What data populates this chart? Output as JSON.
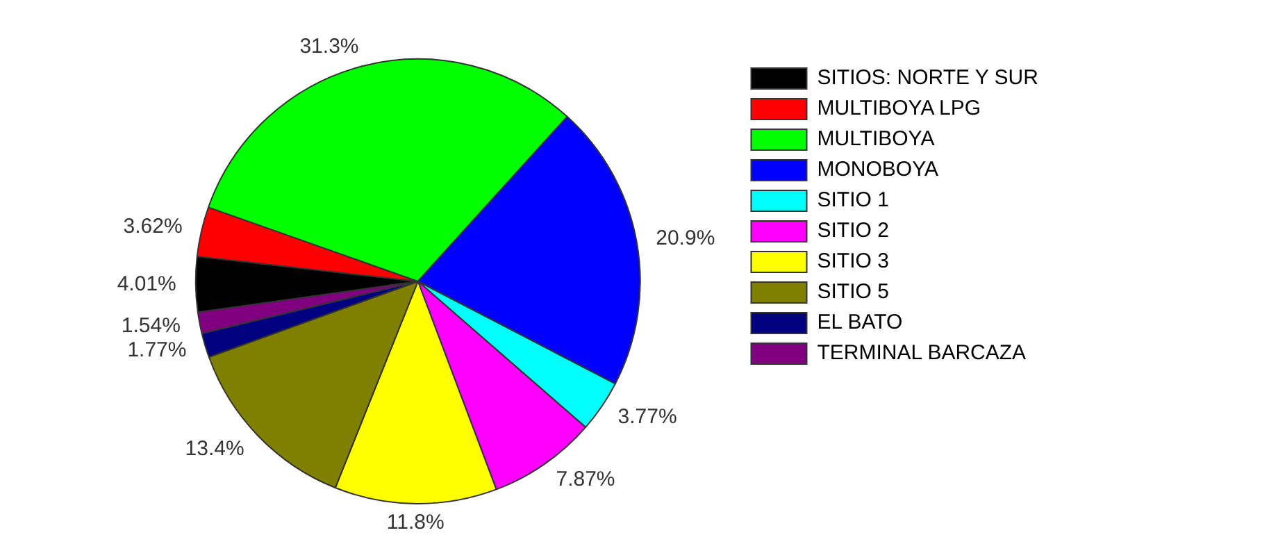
{
  "chart_data": {
    "type": "pie",
    "categories": [
      "SITIOS: NORTE Y SUR",
      "MULTIBOYA LPG",
      "MULTIBOYA",
      "MONOBOYA",
      "SITIO 1",
      "SITIO 2",
      "SITIO 3",
      "SITIO 5",
      "EL BATO",
      "TERMINAL BARCAZA"
    ],
    "values": [
      4.01,
      3.62,
      31.3,
      20.9,
      3.77,
      7.87,
      11.8,
      13.4,
      1.77,
      1.54
    ],
    "colors": [
      "#000000",
      "#ff0000",
      "#00ff00",
      "#0000ff",
      "#00ffff",
      "#ff00ff",
      "#ffff00",
      "#808000",
      "#000080",
      "#800080"
    ],
    "value_labels": [
      "4.01%",
      "3.62%",
      "31.3%",
      "20.9%",
      "3.77%",
      "7.87%",
      "11.8%",
      "13.4%",
      "1.77%",
      "1.54%"
    ],
    "legend": "top right"
  }
}
